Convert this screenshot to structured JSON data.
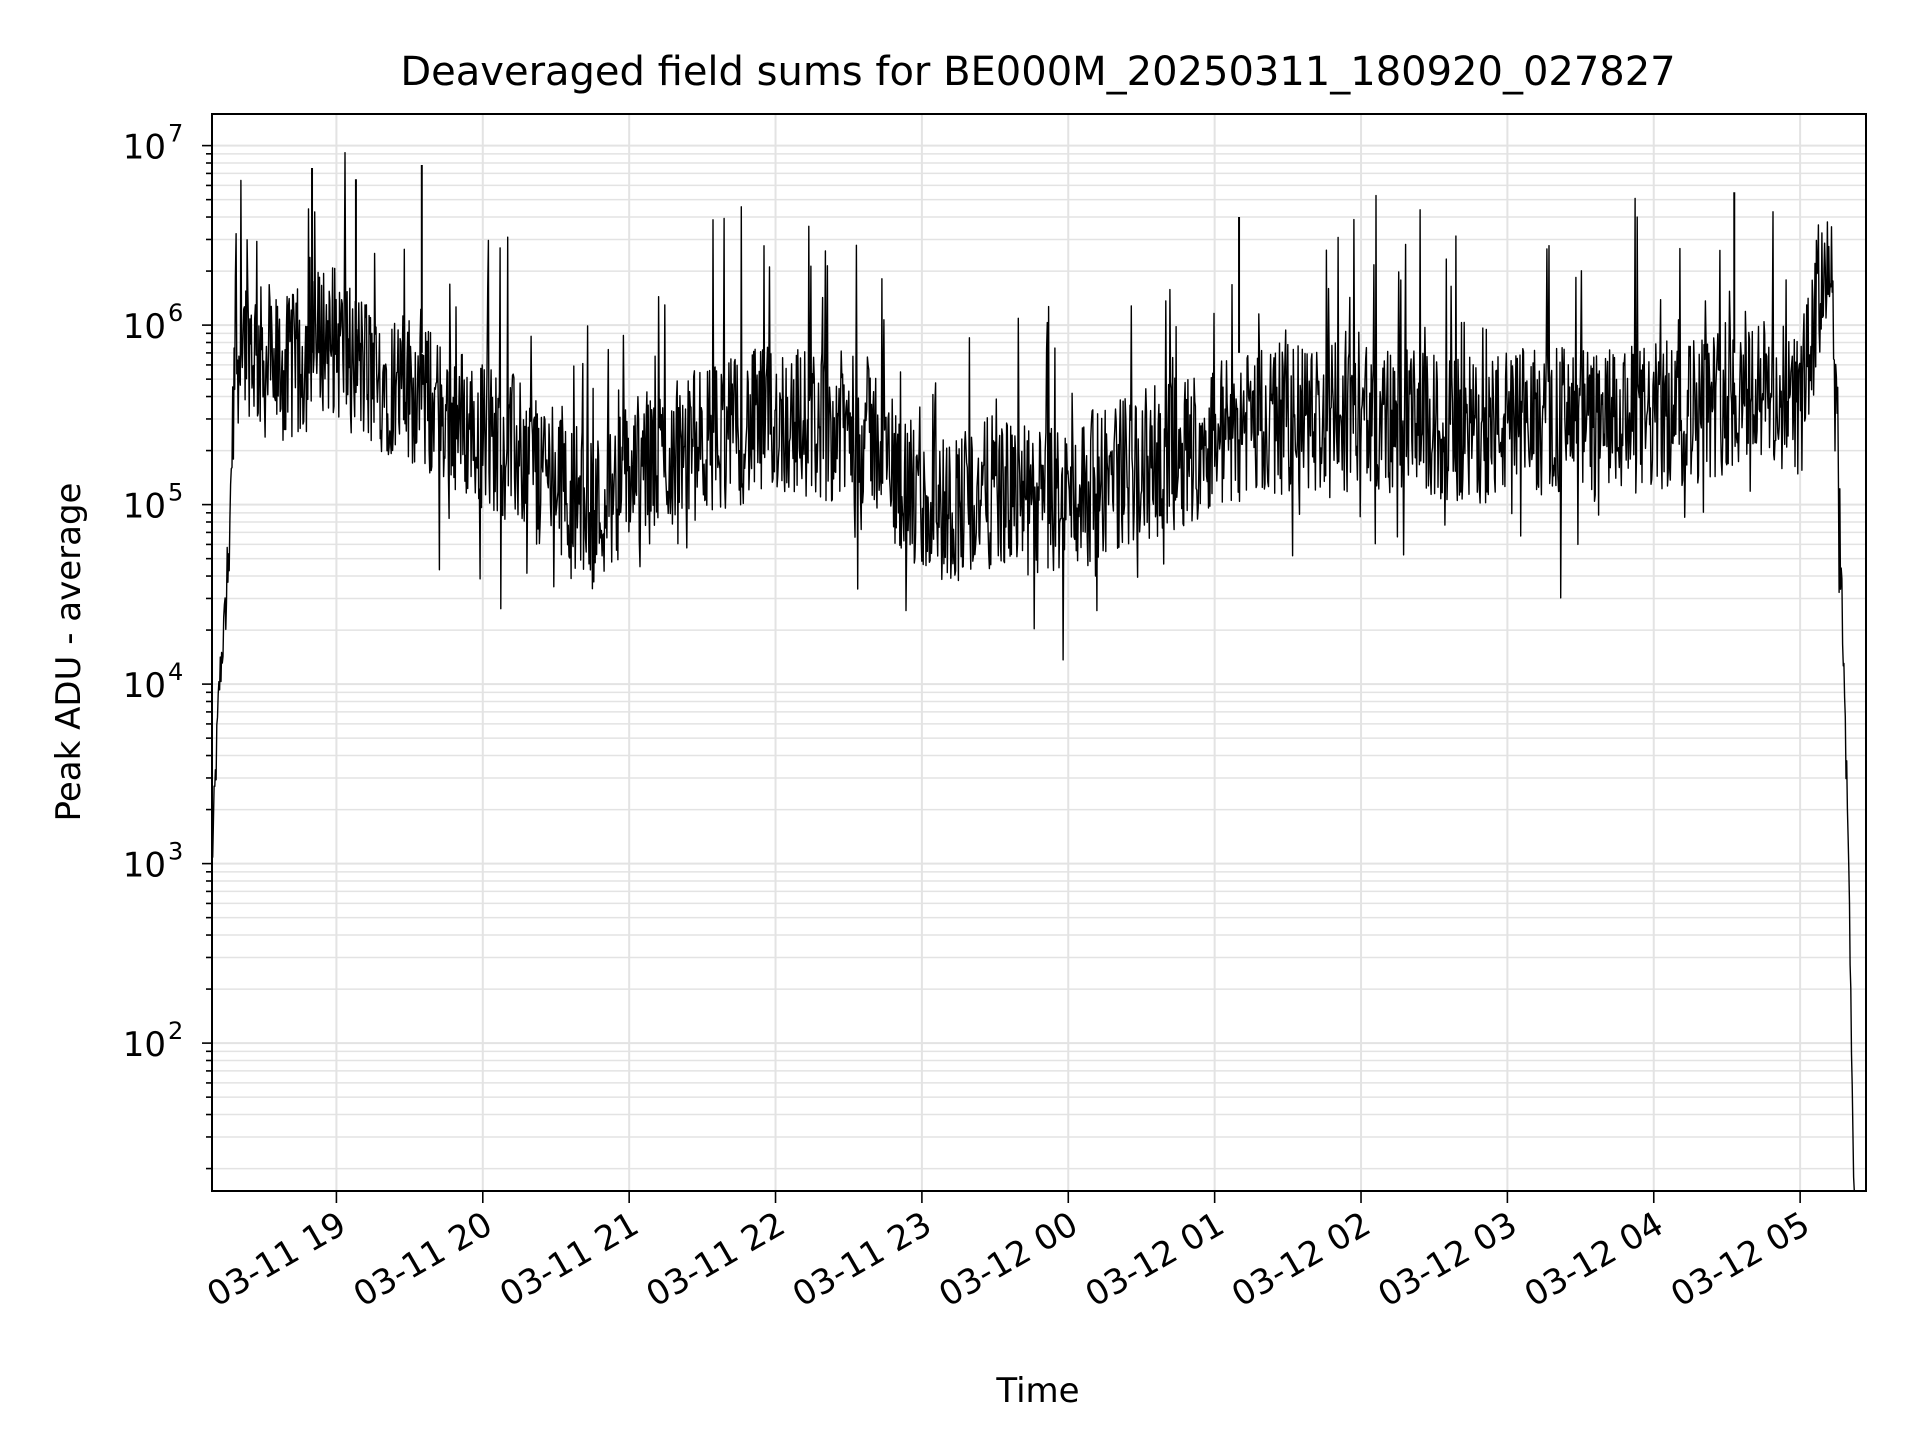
{
  "chart_data": {
    "type": "line",
    "title": "Deaveraged field sums for BE000M_20250311_180920_027827",
    "xlabel": "Time",
    "ylabel": "Peak ADU - average",
    "yscale": "log",
    "ylim": [
      15,
      15000000
    ],
    "xlim": [
      "2025-03-11 18:09",
      "2025-03-12 05:27"
    ],
    "grid": true,
    "y_ticks": [
      {
        "value": 100,
        "base": "10",
        "exp": "2"
      },
      {
        "value": 1000,
        "base": "10",
        "exp": "3"
      },
      {
        "value": 10000,
        "base": "10",
        "exp": "4"
      },
      {
        "value": 100000,
        "base": "10",
        "exp": "5"
      },
      {
        "value": 1000000,
        "base": "10",
        "exp": "6"
      },
      {
        "value": 10000000,
        "base": "10",
        "exp": "7"
      }
    ],
    "x_ticks": [
      {
        "value": "2025-03-11 19:00",
        "label": "03-11 19"
      },
      {
        "value": "2025-03-11 20:00",
        "label": "03-11 20"
      },
      {
        "value": "2025-03-11 21:00",
        "label": "03-11 21"
      },
      {
        "value": "2025-03-11 22:00",
        "label": "03-11 22"
      },
      {
        "value": "2025-03-11 23:00",
        "label": "03-11 23"
      },
      {
        "value": "2025-03-12 00:00",
        "label": "03-12 00"
      },
      {
        "value": "2025-03-12 01:00",
        "label": "03-12 01"
      },
      {
        "value": "2025-03-12 02:00",
        "label": "03-12 02"
      },
      {
        "value": "2025-03-12 03:00",
        "label": "03-12 03"
      },
      {
        "value": "2025-03-12 04:00",
        "label": "03-12 04"
      },
      {
        "value": "2025-03-12 05:00",
        "label": "03-12 05"
      }
    ],
    "series": [
      {
        "color": "#000000",
        "x": [
          "2025-03-11 18:09",
          "2025-03-11 18:12",
          "2025-03-11 18:15",
          "2025-03-11 18:18",
          "2025-03-11 18:21",
          "2025-03-11 18:25",
          "2025-03-11 18:30",
          "2025-03-11 18:40",
          "2025-03-11 18:50",
          "2025-03-11 18:55",
          "2025-03-11 19:00",
          "2025-03-11 19:10",
          "2025-03-11 19:15",
          "2025-03-11 19:20",
          "2025-03-11 19:30",
          "2025-03-11 19:40",
          "2025-03-11 20:00",
          "2025-03-11 20:30",
          "2025-03-11 20:45",
          "2025-03-11 21:00",
          "2025-03-11 21:20",
          "2025-03-11 21:40",
          "2025-03-11 22:00",
          "2025-03-11 22:20",
          "2025-03-11 22:40",
          "2025-03-11 23:00",
          "2025-03-11 23:15",
          "2025-03-11 23:30",
          "2025-03-11 23:45",
          "2025-03-12 00:00",
          "2025-03-12 00:20",
          "2025-03-12 00:40",
          "2025-03-12 01:00",
          "2025-03-12 01:20",
          "2025-03-12 01:40",
          "2025-03-12 02:00",
          "2025-03-12 02:20",
          "2025-03-12 02:40",
          "2025-03-12 03:00",
          "2025-03-12 03:20",
          "2025-03-12 03:40",
          "2025-03-12 04:00",
          "2025-03-12 04:20",
          "2025-03-12 04:40",
          "2025-03-12 05:00",
          "2025-03-12 05:05",
          "2025-03-12 05:10",
          "2025-03-12 05:13",
          "2025-03-12 05:16",
          "2025-03-12 05:18",
          "2025-03-12 05:20",
          "2025-03-12 05:22"
        ],
        "values": [
          1000,
          10000,
          30000,
          500000,
          900000,
          800000,
          600000,
          550000,
          700000,
          900000,
          800000,
          600000,
          500000,
          500000,
          450000,
          350000,
          250000,
          150000,
          90000,
          150000,
          200000,
          250000,
          300000,
          280000,
          250000,
          90000,
          100000,
          120000,
          100000,
          110000,
          150000,
          180000,
          250000,
          300000,
          300000,
          300000,
          280000,
          250000,
          280000,
          300000,
          280000,
          300000,
          350000,
          450000,
          350000,
          800000,
          2500000,
          1500000,
          100000,
          10000,
          1000,
          15
        ]
      }
    ],
    "annotations": [
      {
        "x": "2025-03-11 18:50",
        "y": 7500000
      },
      {
        "x": "2025-03-11 19:08",
        "y": 6500000
      },
      {
        "x": "2025-03-11 19:35",
        "y": 7800000
      },
      {
        "x": "2025-03-12 01:10",
        "y": 4000000
      },
      {
        "x": "2025-03-12 04:33",
        "y": 5500000
      }
    ]
  }
}
